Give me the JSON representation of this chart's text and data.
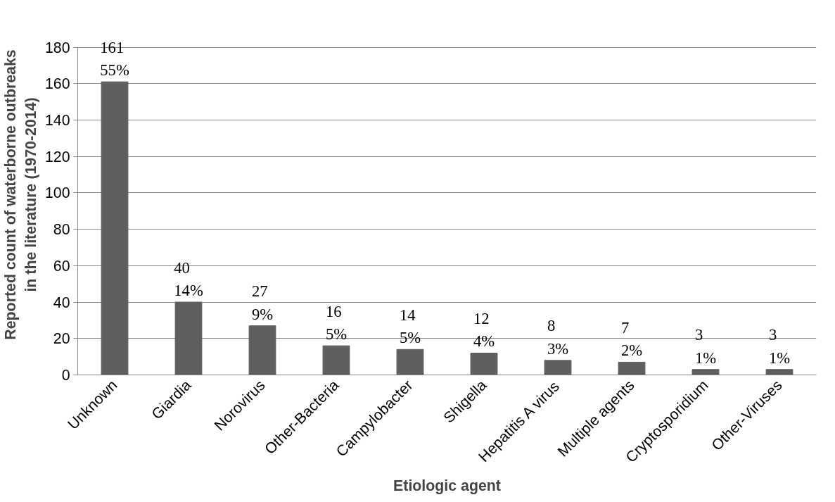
{
  "chart_data": {
    "type": "bar",
    "xlabel": "Etiologic agent",
    "ylabel": "Reported count of waterborne outbreaks\nin the literature (1970-2014)",
    "categories": [
      "Unknown",
      "Giardia",
      "Norovirus",
      "Other-Bacteria",
      "Campylobacter",
      "Shigella",
      "Hepatitis A virus",
      "Multiple agents",
      "Cryptosporidium",
      "Other-Viruses"
    ],
    "values": [
      161,
      40,
      27,
      16,
      14,
      12,
      8,
      7,
      3,
      3
    ],
    "value_labels": [
      "161\n55%",
      "40\n14%",
      "27\n9%",
      "16\n5%",
      "14\n5%",
      "12\n4%",
      "8\n3%",
      "7\n2%",
      "3\n1%",
      "3\n1%"
    ],
    "color": "#5f5f5f",
    "ylim": [
      0,
      180
    ],
    "yticks": [
      0,
      20,
      40,
      60,
      80,
      100,
      120,
      140,
      160,
      180
    ],
    "grid": "y"
  }
}
